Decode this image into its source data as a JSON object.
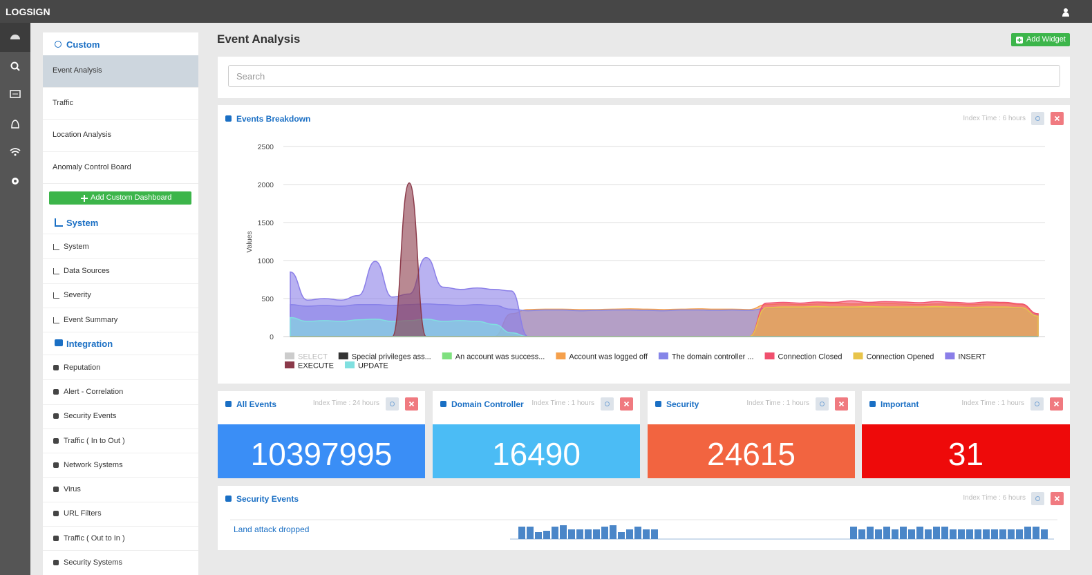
{
  "brand": "LOGSIGN",
  "sidebar": {
    "add_button": "Add Custom Dashboard",
    "sections": [
      {
        "title": "Custom",
        "items": [
          "Event Analysis",
          "Traffic",
          "Location Analysis",
          "Anomaly Control Board"
        ]
      },
      {
        "title": "System",
        "items": [
          "System",
          "Data Sources",
          "Severity",
          "Event Summary"
        ]
      },
      {
        "title": "Integration",
        "items": [
          "Reputation",
          "Alert - Correlation",
          "Security Events",
          "Traffic ( In to Out )",
          "Network Systems",
          "Virus",
          "URL Filters",
          "Traffic ( Out to In )",
          "Security Systems"
        ]
      }
    ]
  },
  "page_title": "Event Analysis",
  "add_widget": "Add Widget",
  "search_placeholder": "Search",
  "chart_data": {
    "type": "area",
    "title": "Events Breakdown",
    "index_time": "Index Time : 6 hours",
    "ylabel": "Values",
    "ylim": [
      0,
      2500
    ],
    "yticks": [
      0,
      500,
      1000,
      1500,
      2000,
      2500
    ],
    "grid": true,
    "series": [
      {
        "name": "SELECT",
        "color": "#cccccc",
        "values": [
          0,
          0,
          0,
          0,
          0,
          0,
          0,
          0,
          0,
          0,
          0,
          0,
          0,
          0,
          0,
          0,
          0,
          0,
          0,
          0,
          0,
          0,
          0,
          0,
          0,
          0,
          0,
          0,
          0,
          0,
          0,
          0,
          0,
          0,
          0,
          0,
          0,
          0,
          0,
          0,
          0,
          0,
          0,
          0,
          0
        ]
      },
      {
        "name": "Special privileges ass...",
        "color": "#333333",
        "values": [
          0,
          0,
          0,
          0,
          0,
          0,
          0,
          0,
          0,
          0,
          0,
          0,
          0,
          0,
          0,
          0,
          0,
          0,
          0,
          0,
          0,
          0,
          0,
          0,
          0,
          0,
          0,
          0,
          0,
          0,
          0,
          0,
          0,
          0,
          0,
          0,
          0,
          0,
          0,
          0,
          0,
          0,
          0,
          0,
          0
        ]
      },
      {
        "name": "An account was success...",
        "color": "#7fe07f",
        "values": [
          0,
          0,
          0,
          0,
          0,
          0,
          0,
          0,
          0,
          0,
          0,
          0,
          0,
          0,
          0,
          0,
          0,
          0,
          0,
          0,
          0,
          0,
          0,
          0,
          0,
          0,
          0,
          0,
          0,
          0,
          0,
          0,
          0,
          0,
          0,
          0,
          0,
          0,
          0,
          0,
          0,
          0,
          0,
          0,
          0
        ]
      },
      {
        "name": "Account was logged off",
        "color": "#f5a04c",
        "values": [
          0,
          0,
          0,
          0,
          0,
          0,
          0,
          0,
          0,
          0,
          0,
          0,
          0,
          300,
          355,
          360,
          360,
          355,
          355,
          360,
          365,
          360,
          355,
          360,
          365,
          360,
          360,
          355,
          420,
          430,
          420,
          430,
          440,
          430,
          430,
          440,
          430,
          420,
          430,
          430,
          420,
          430,
          440,
          420,
          300
        ]
      },
      {
        "name": "The domain controller ...",
        "color": "#8585e8",
        "values": [
          420,
          400,
          410,
          400,
          420,
          420,
          410,
          420,
          430,
          420,
          410,
          420,
          410,
          360,
          340,
          350,
          350,
          340,
          345,
          350,
          350,
          345,
          340,
          350,
          350,
          345,
          350,
          345,
          370,
          370,
          370,
          370,
          370,
          370,
          370,
          370,
          370,
          370,
          370,
          370,
          370,
          370,
          370,
          370,
          280
        ]
      },
      {
        "name": "Connection Closed",
        "color": "#f0506e",
        "values": [
          0,
          0,
          0,
          0,
          0,
          0,
          0,
          0,
          0,
          0,
          0,
          0,
          0,
          0,
          0,
          0,
          0,
          0,
          0,
          0,
          0,
          0,
          0,
          0,
          0,
          0,
          0,
          0,
          440,
          450,
          440,
          455,
          450,
          470,
          450,
          460,
          455,
          445,
          460,
          450,
          440,
          455,
          450,
          430,
          300
        ]
      },
      {
        "name": "Connection Opened",
        "color": "#e8c44a",
        "values": [
          0,
          0,
          0,
          0,
          0,
          0,
          0,
          0,
          0,
          0,
          0,
          0,
          0,
          0,
          0,
          0,
          0,
          0,
          0,
          0,
          0,
          0,
          0,
          0,
          0,
          0,
          0,
          0,
          380,
          390,
          390,
          395,
          390,
          390,
          395,
          390,
          390,
          390,
          395,
          390,
          385,
          390,
          390,
          380,
          270
        ]
      },
      {
        "name": "INSERT",
        "color": "#8a7ee8",
        "values": [
          850,
          480,
          500,
          480,
          540,
          990,
          520,
          560,
          1040,
          650,
          620,
          640,
          620,
          600,
          0,
          0,
          0,
          0,
          0,
          0,
          0,
          0,
          0,
          0,
          0,
          0,
          0,
          0,
          0,
          0,
          0,
          0,
          0,
          0,
          0,
          0,
          0,
          0,
          0,
          0,
          0,
          0,
          0,
          0,
          0
        ]
      },
      {
        "name": "EXECUTE",
        "color": "#8b3a4a",
        "values": [
          0,
          0,
          0,
          0,
          0,
          0,
          0,
          2020,
          0,
          0,
          0,
          0,
          0,
          0,
          0,
          0,
          0,
          0,
          0,
          0,
          0,
          0,
          0,
          0,
          0,
          0,
          0,
          0,
          0,
          0,
          0,
          0,
          0,
          0,
          0,
          0,
          0,
          0,
          0,
          0,
          0,
          0,
          0,
          0,
          0
        ]
      },
      {
        "name": "UPDATE",
        "color": "#80e0e0",
        "values": [
          250,
          200,
          210,
          200,
          220,
          230,
          200,
          210,
          230,
          200,
          210,
          200,
          160,
          50,
          0,
          0,
          0,
          0,
          0,
          0,
          0,
          0,
          0,
          0,
          0,
          0,
          0,
          0,
          0,
          0,
          0,
          0,
          0,
          0,
          0,
          0,
          0,
          0,
          0,
          0,
          0,
          0,
          0,
          0,
          0
        ]
      }
    ]
  },
  "stats": [
    {
      "title": "All Events",
      "index_time": "Index Time : 24 hours",
      "value": 10397995,
      "color": "#3a8ef6"
    },
    {
      "title": "Domain Controller",
      "index_time": "Index Time : 1 hours",
      "value": 16490,
      "color": "#4bbcf5"
    },
    {
      "title": "Security",
      "index_time": "Index Time : 1 hours",
      "value": 24615,
      "color": "#f26440"
    },
    {
      "title": "Important",
      "index_time": "Index Time : 1 hours",
      "value": 31,
      "color": "#ee0a0a"
    }
  ],
  "security_events": {
    "title": "Security Events",
    "index_time": "Index Time : 6 hours",
    "label": "Land attack dropped",
    "color": "#4a86c8",
    "bars": [
      9,
      9,
      5,
      6,
      9,
      10,
      7,
      7,
      7,
      7,
      9,
      10,
      5,
      7,
      9,
      7,
      7,
      0,
      0,
      0,
      0,
      0,
      0,
      0,
      0,
      0,
      0,
      0,
      0,
      0,
      0,
      0,
      0,
      0,
      0,
      0,
      0,
      0,
      0,
      0,
      9,
      7,
      9,
      7,
      9,
      7,
      9,
      7,
      9,
      7,
      9,
      9,
      7,
      7,
      7,
      7,
      7,
      7,
      7,
      7,
      7,
      9,
      9,
      7
    ]
  }
}
